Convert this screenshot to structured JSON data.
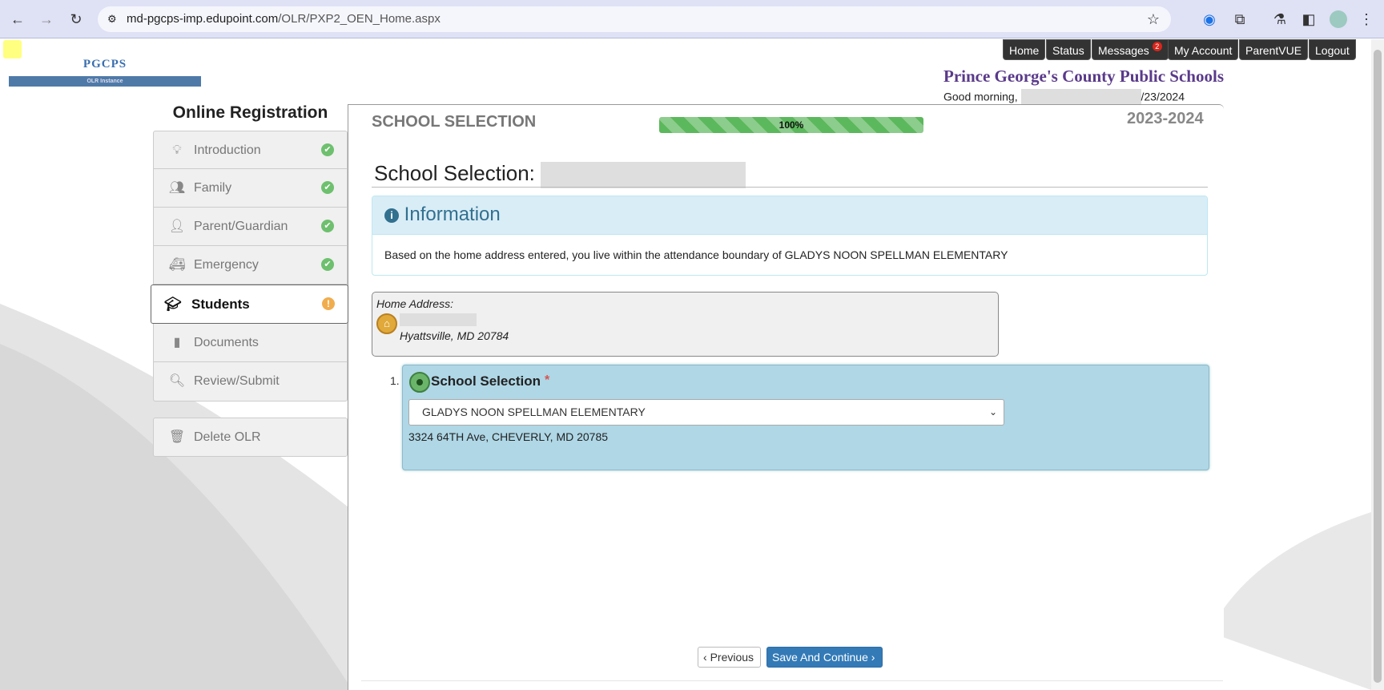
{
  "browser": {
    "url_host": "md-pgcps-imp.edupoint.com",
    "url_path": "/OLR/PXP2_OEN_Home.aspx"
  },
  "logo": {
    "text": "PGCPS",
    "subtext": "OLR Instance"
  },
  "topnav": {
    "items": [
      {
        "label": "Home"
      },
      {
        "label": "Status"
      },
      {
        "label": "Messages",
        "badge": "2"
      },
      {
        "label": "My Account"
      },
      {
        "label": "ParentVUE"
      },
      {
        "label": "Logout"
      }
    ]
  },
  "header": {
    "district": "Prince George's County Public Schools",
    "greeting": "Good morning,",
    "date_suffix": "/23/2024"
  },
  "sidebar": {
    "title": "Online Registration",
    "items": [
      {
        "label": "Introduction",
        "icon": "lightbulb-icon",
        "status": "complete"
      },
      {
        "label": "Family",
        "icon": "users-icon",
        "status": "complete"
      },
      {
        "label": "Parent/Guardian",
        "icon": "user-icon",
        "status": "complete"
      },
      {
        "label": "Emergency",
        "icon": "ambulance-icon",
        "status": "complete"
      },
      {
        "label": "Students",
        "icon": "graduation-cap-icon",
        "status": "incomplete"
      },
      {
        "label": "Documents",
        "icon": "document-icon"
      },
      {
        "label": "Review/Submit",
        "icon": "search-icon"
      }
    ],
    "delete_label": "Delete OLR"
  },
  "main": {
    "section_title": "SCHOOL SELECTION",
    "progress": "100%",
    "progress_value": 100,
    "school_year": "2023-2024",
    "heading": "School Selection:",
    "info": {
      "title": "Information",
      "text": "Based on the home address entered, you live within the attendance boundary of GLADYS NOON SPELLMAN ELEMENTARY"
    },
    "home_address": {
      "label": "Home Address:",
      "city_line": "Hyattsville, MD 20784"
    },
    "selection": {
      "number": "1.",
      "title": "School Selection",
      "required": "*",
      "selected": "GLADYS NOON SPELLMAN ELEMENTARY",
      "address": "3324 64TH Ave, CHEVERLY, MD 20785"
    },
    "prev_label": "Previous",
    "save_label": "Save And Continue"
  },
  "colors": {
    "district": "#5a3a8a",
    "info": "#31708f",
    "primary": "#337ab7",
    "selection_bg": "#afd7e6"
  }
}
